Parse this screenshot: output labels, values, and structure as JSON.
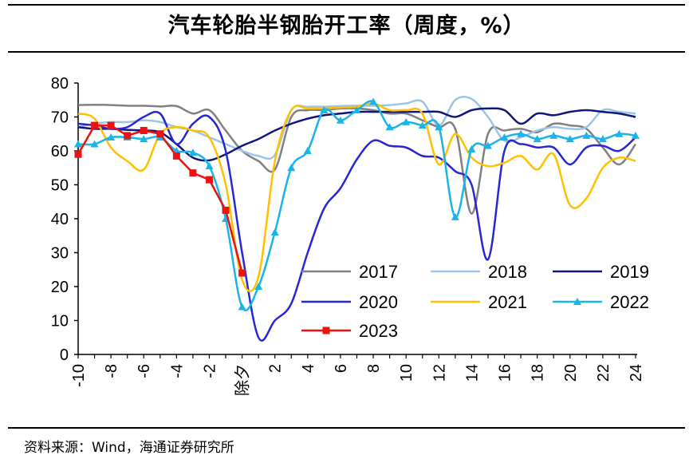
{
  "title": "汽车轮胎半钢胎开工率（周度，%）",
  "source": "资料来源：Wind，海通证券研究所",
  "chart_data": {
    "type": "line",
    "title": "汽车轮胎半钢胎开工率（周度，%）",
    "xlabel": "",
    "ylabel": "",
    "ylim": [
      0,
      80
    ],
    "yticks": [
      0,
      10,
      20,
      30,
      40,
      50,
      60,
      70,
      80
    ],
    "xlim": [
      -10,
      24
    ],
    "x_tick_labels": [
      {
        "x": -10,
        "label": "-10"
      },
      {
        "x": -8,
        "label": "-8"
      },
      {
        "x": -6,
        "label": "-6"
      },
      {
        "x": -4,
        "label": "-4"
      },
      {
        "x": -2,
        "label": "-2"
      },
      {
        "x": 0,
        "label": "除夕"
      },
      {
        "x": 2,
        "label": "2"
      },
      {
        "x": 4,
        "label": "4"
      },
      {
        "x": 6,
        "label": "6"
      },
      {
        "x": 8,
        "label": "8"
      },
      {
        "x": 10,
        "label": "10"
      },
      {
        "x": 12,
        "label": "12"
      },
      {
        "x": 14,
        "label": "14"
      },
      {
        "x": 16,
        "label": "16"
      },
      {
        "x": 18,
        "label": "18"
      },
      {
        "x": 20,
        "label": "20"
      },
      {
        "x": 22,
        "label": "22"
      },
      {
        "x": 24,
        "label": "24"
      }
    ],
    "grid": false,
    "legend_position": "lower-right",
    "series": [
      {
        "name": "2017",
        "color": "#808080",
        "marker": "none",
        "x": [
          -10,
          -9,
          -8,
          -7,
          -6,
          -5,
          -4,
          -3,
          -2,
          -1,
          0,
          1,
          2,
          3,
          4,
          5,
          6,
          7,
          8,
          9,
          10,
          11,
          12,
          13,
          14,
          15,
          16,
          17,
          18,
          19,
          20,
          21,
          22,
          23,
          24
        ],
        "values": [
          73.5,
          73.6,
          73.5,
          73.3,
          73.3,
          73.1,
          73.2,
          71,
          72,
          66,
          60,
          57,
          54.5,
          70,
          72,
          72,
          72.5,
          72.5,
          72,
          71,
          71,
          69,
          67,
          66.5,
          41.5,
          65,
          66,
          66.5,
          65.5,
          68,
          67.5,
          66.5,
          61,
          56,
          62
        ]
      },
      {
        "name": "2018",
        "color": "#9DC3E6",
        "marker": "none",
        "x": [
          -10,
          -9,
          -8,
          -7,
          -6,
          -5,
          -4,
          -3,
          -2,
          -1,
          0,
          1,
          2,
          3,
          4,
          5,
          6,
          7,
          8,
          9,
          10,
          11,
          12,
          13,
          14,
          15,
          16,
          17,
          18,
          19,
          20,
          21,
          22,
          23,
          24
        ],
        "values": [
          67,
          68,
          68.5,
          68.5,
          69,
          68.5,
          67,
          66,
          64,
          62,
          60,
          58.5,
          58.8,
          72,
          73,
          73,
          73.2,
          73.3,
          73.3,
          73.5,
          74,
          74.5,
          67.5,
          75,
          75.3,
          70,
          63,
          64,
          66,
          67,
          66.5,
          67,
          72,
          71.5,
          71
        ]
      },
      {
        "name": "2019",
        "color": "#10177A",
        "marker": "none",
        "x": [
          -10,
          -9,
          -8,
          -7,
          -6,
          -5,
          -4,
          -3,
          -2,
          -1,
          0,
          1,
          2,
          3,
          4,
          5,
          6,
          7,
          8,
          9,
          10,
          11,
          12,
          13,
          14,
          15,
          16,
          17,
          18,
          19,
          20,
          21,
          22,
          23,
          24
        ],
        "values": [
          67,
          66.5,
          66.5,
          66.2,
          66,
          65.5,
          62,
          58,
          57.2,
          59,
          61.5,
          63.5,
          66,
          68,
          69.5,
          70.5,
          71,
          71.5,
          71.5,
          71.5,
          71.5,
          71.5,
          71.5,
          70,
          72,
          72.5,
          72,
          68,
          71,
          70.5,
          71.5,
          72,
          71.5,
          71,
          70
        ]
      },
      {
        "name": "2020",
        "color": "#2727D4",
        "marker": "none",
        "x": [
          -10,
          -9,
          -8,
          -7,
          -6,
          -5,
          -4,
          -3,
          -2,
          -1,
          0,
          1,
          2,
          3,
          4,
          5,
          6,
          7,
          8,
          9,
          10,
          11,
          12,
          13,
          14,
          15,
          16,
          17,
          18,
          19,
          20,
          21,
          22,
          23,
          24
        ],
        "values": [
          68,
          67.5,
          66.5,
          67,
          70,
          71,
          62,
          68,
          70,
          60,
          30,
          5,
          10,
          15,
          30,
          43,
          49,
          57.5,
          63,
          61.5,
          61,
          58.5,
          58,
          54,
          50,
          28,
          60,
          62,
          61,
          61,
          56,
          61,
          61.5,
          60,
          64
        ]
      },
      {
        "name": "2021",
        "color": "#FFC000",
        "marker": "none",
        "x": [
          -10,
          -9,
          -8,
          -7,
          -6,
          -5,
          -4,
          -3,
          -2,
          -1,
          0,
          1,
          2,
          3,
          4,
          5,
          6,
          7,
          8,
          9,
          10,
          11,
          12,
          13,
          14,
          15,
          16,
          17,
          18,
          19,
          20,
          21,
          22,
          23,
          24
        ],
        "values": [
          71,
          69.5,
          61,
          57,
          54.5,
          65,
          67,
          66,
          64,
          50,
          22,
          23,
          57,
          72,
          72.5,
          72.5,
          72.8,
          73,
          74,
          72,
          72,
          71,
          56,
          65,
          58,
          55.5,
          56.5,
          58.5,
          54.5,
          59,
          44,
          46,
          55,
          58,
          57
        ]
      },
      {
        "name": "2022",
        "color": "#19B4EA",
        "marker": "triangle",
        "x": [
          -10,
          -9,
          -8,
          -7,
          -6,
          -5,
          -4,
          -3,
          -2,
          -1,
          0,
          1,
          2,
          3,
          4,
          5,
          6,
          7,
          8,
          9,
          10,
          11,
          12,
          13,
          14,
          15,
          16,
          17,
          18,
          19,
          20,
          21,
          22,
          23,
          24
        ],
        "values": [
          62,
          62,
          64,
          64,
          63.5,
          64,
          60,
          59.5,
          55.5,
          40,
          14,
          20,
          36,
          55,
          60,
          72,
          69,
          72,
          74.5,
          67,
          68.5,
          67.5,
          67,
          40.5,
          60.5,
          61.5,
          64,
          65,
          63.5,
          64.5,
          63.5,
          64.5,
          63.5,
          65,
          64.5
        ]
      },
      {
        "name": "2023",
        "color": "#EE1111",
        "marker": "square",
        "x": [
          -10,
          -9,
          -8,
          -7,
          -6,
          -5,
          -4,
          -3,
          -2,
          -1,
          0
        ],
        "values": [
          59,
          67.5,
          67.5,
          64.5,
          66,
          65,
          58.5,
          53.5,
          51.5,
          42.5,
          24
        ]
      }
    ]
  }
}
